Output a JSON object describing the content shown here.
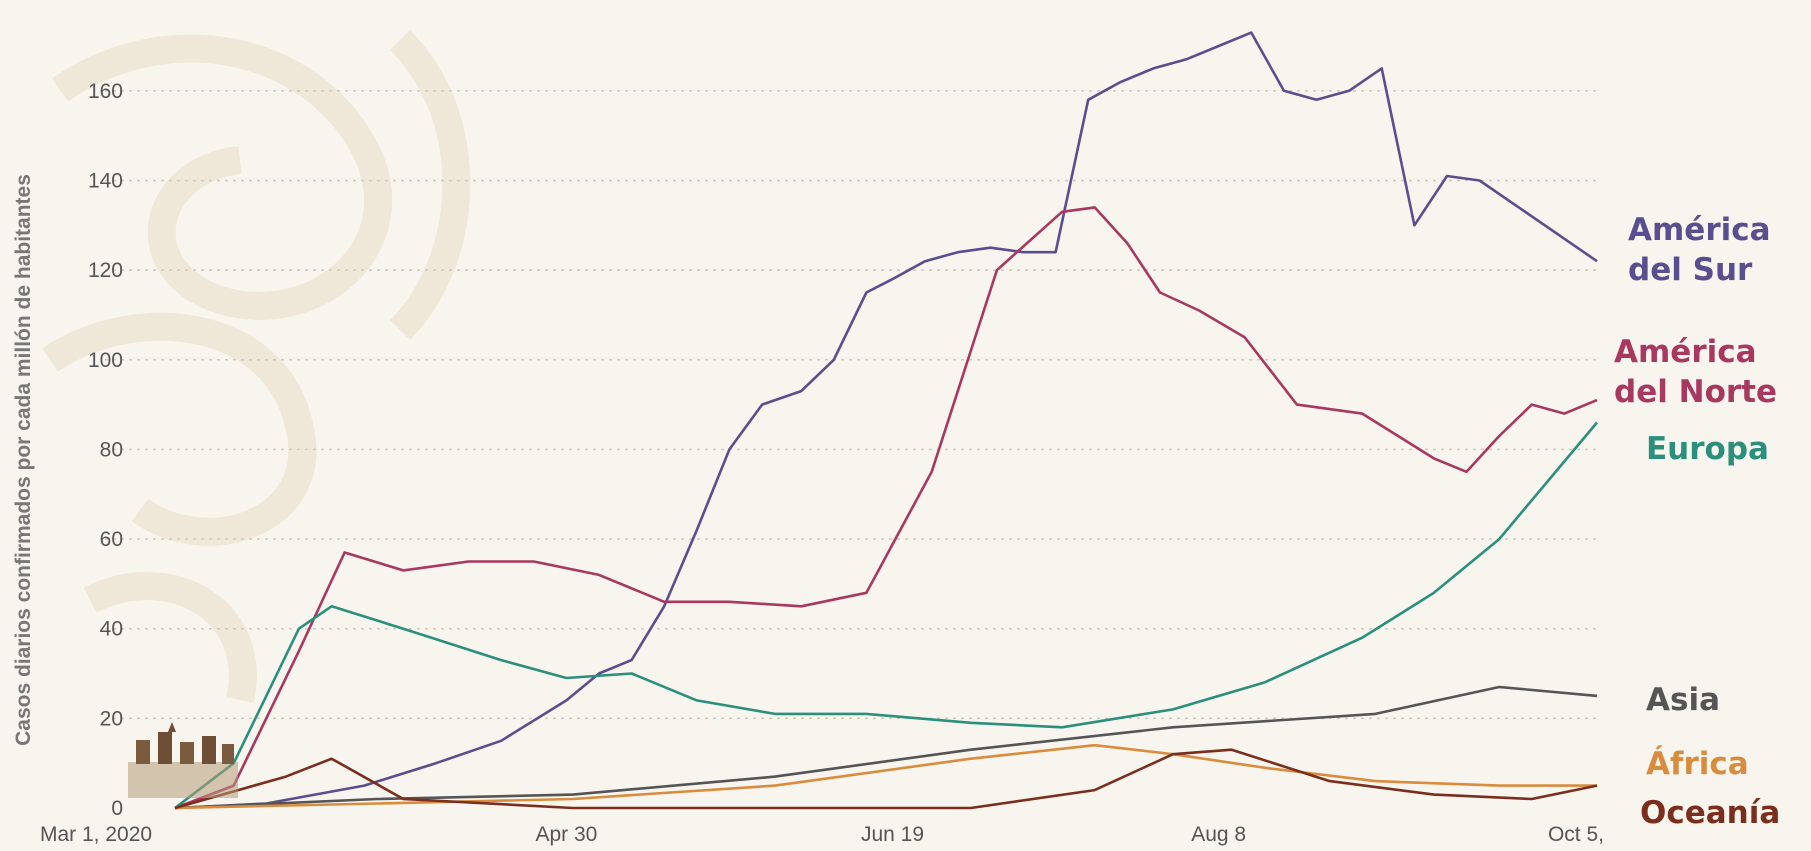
{
  "chart_data": {
    "type": "line",
    "title": "",
    "xlabel": "",
    "ylabel": "Casos diarios confirmados por cada millón de habitantes",
    "ylim": [
      0,
      170
    ],
    "yticks": [
      0,
      20,
      40,
      60,
      80,
      100,
      120,
      140,
      160
    ],
    "x_range": [
      "2020-03-01",
      "2020-10-05"
    ],
    "x_ticks": [
      {
        "date": "2020-03-01",
        "label": "Mar 1, 2020"
      },
      {
        "date": "2020-04-30",
        "label": "Apr 30"
      },
      {
        "date": "2020-06-19",
        "label": "Jun 19"
      },
      {
        "date": "2020-08-08",
        "label": "Aug 8"
      },
      {
        "date": "2020-10-05",
        "label": "Oct 5,"
      }
    ],
    "grid": "horizontal dotted",
    "legend": "right, inline labels at line ends",
    "series": [
      {
        "name": "América del Sur",
        "label_lines": [
          "América",
          "del Sur"
        ],
        "color": "#5a4f8e",
        "x": [
          "2020-03-01",
          "2020-03-15",
          "2020-03-30",
          "2020-04-10",
          "2020-04-20",
          "2020-04-30",
          "2020-05-05",
          "2020-05-10",
          "2020-05-15",
          "2020-05-20",
          "2020-05-25",
          "2020-05-30",
          "2020-06-05",
          "2020-06-10",
          "2020-06-15",
          "2020-06-19",
          "2020-06-24",
          "2020-06-29",
          "2020-07-04",
          "2020-07-09",
          "2020-07-14",
          "2020-07-19",
          "2020-07-24",
          "2020-07-29",
          "2020-08-03",
          "2020-08-08",
          "2020-08-13",
          "2020-08-18",
          "2020-08-23",
          "2020-08-28",
          "2020-09-02",
          "2020-09-07",
          "2020-09-12",
          "2020-09-17",
          "2020-09-22",
          "2020-09-27",
          "2020-10-05"
        ],
        "y": [
          0,
          1,
          5,
          10,
          15,
          24,
          30,
          33,
          45,
          62,
          80,
          90,
          93,
          100,
          115,
          118,
          122,
          124,
          125,
          124,
          124,
          158,
          162,
          165,
          167,
          170,
          173,
          160,
          158,
          160,
          165,
          130,
          141,
          140,
          135,
          130,
          122
        ]
      },
      {
        "name": "América del Norte",
        "label_lines": [
          "América",
          "del Norte"
        ],
        "color": "#a8385f",
        "x": [
          "2020-03-01",
          "2020-03-10",
          "2020-03-20",
          "2020-03-27",
          "2020-04-05",
          "2020-04-15",
          "2020-04-25",
          "2020-05-05",
          "2020-05-15",
          "2020-05-25",
          "2020-06-05",
          "2020-06-15",
          "2020-06-25",
          "2020-07-05",
          "2020-07-15",
          "2020-07-20",
          "2020-07-25",
          "2020-07-30",
          "2020-08-05",
          "2020-08-12",
          "2020-08-20",
          "2020-08-30",
          "2020-09-10",
          "2020-09-15",
          "2020-09-20",
          "2020-09-25",
          "2020-09-30",
          "2020-10-05"
        ],
        "y": [
          0,
          5,
          35,
          57,
          53,
          55,
          55,
          52,
          46,
          46,
          45,
          48,
          75,
          120,
          133,
          134,
          126,
          115,
          111,
          105,
          90,
          88,
          78,
          75,
          83,
          90,
          88,
          91
        ]
      },
      {
        "name": "Europa",
        "label_lines": [
          "Europa"
        ],
        "color": "#2a8f7c",
        "x": [
          "2020-03-01",
          "2020-03-10",
          "2020-03-20",
          "2020-03-25",
          "2020-04-05",
          "2020-04-20",
          "2020-04-30",
          "2020-05-10",
          "2020-05-20",
          "2020-06-01",
          "2020-06-15",
          "2020-07-01",
          "2020-07-15",
          "2020-08-01",
          "2020-08-15",
          "2020-08-30",
          "2020-09-10",
          "2020-09-20",
          "2020-10-05"
        ],
        "y": [
          0,
          10,
          40,
          45,
          40,
          33,
          29,
          30,
          24,
          21,
          21,
          19,
          18,
          22,
          28,
          38,
          48,
          60,
          86
        ]
      },
      {
        "name": "Asia",
        "label_lines": [
          "Asia"
        ],
        "color": "#555555",
        "x": [
          "2020-03-01",
          "2020-04-01",
          "2020-05-01",
          "2020-06-01",
          "2020-07-01",
          "2020-08-01",
          "2020-09-01",
          "2020-09-20",
          "2020-10-05"
        ],
        "y": [
          0,
          2,
          3,
          7,
          13,
          18,
          21,
          27,
          25
        ]
      },
      {
        "name": "África",
        "label_lines": [
          "África"
        ],
        "color": "#d98c3e",
        "x": [
          "2020-03-01",
          "2020-04-01",
          "2020-05-01",
          "2020-06-01",
          "2020-07-01",
          "2020-07-20",
          "2020-08-01",
          "2020-08-15",
          "2020-09-01",
          "2020-09-20",
          "2020-10-05"
        ],
        "y": [
          0,
          1,
          2,
          5,
          11,
          14,
          12,
          9,
          6,
          5,
          5
        ]
      },
      {
        "name": "Oceanía",
        "label_lines": [
          "Oceanía"
        ],
        "color": "#7a2e1e",
        "x": [
          "2020-03-01",
          "2020-03-18",
          "2020-03-25",
          "2020-04-05",
          "2020-05-01",
          "2020-06-01",
          "2020-07-01",
          "2020-07-20",
          "2020-08-01",
          "2020-08-10",
          "2020-08-25",
          "2020-09-10",
          "2020-09-25",
          "2020-10-05"
        ],
        "y": [
          0,
          7,
          11,
          2,
          0,
          0,
          0,
          4,
          12,
          13,
          6,
          3,
          2,
          5
        ]
      }
    ]
  }
}
